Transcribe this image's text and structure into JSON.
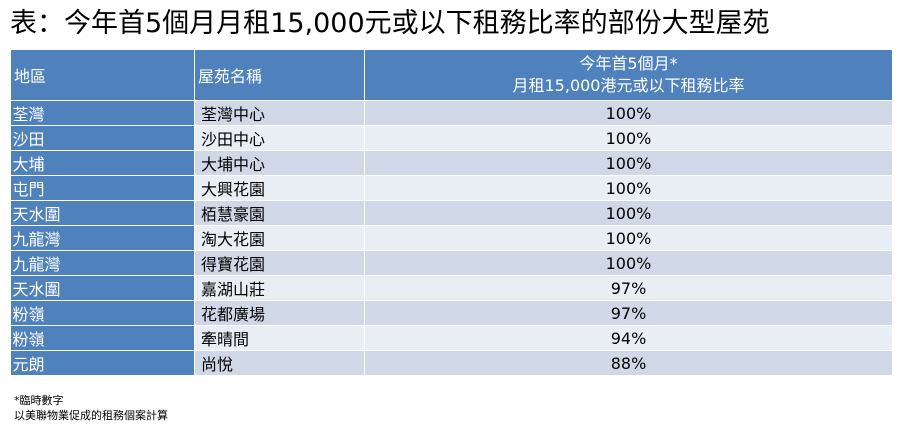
{
  "title": "表：今年首5個月月租15,000元或以下租務比率的部份大型屋苑",
  "colors": {
    "header_bg": "#4f81bd",
    "row_odd": "#d0d8e8",
    "row_even": "#e9edf4",
    "header_text": "#ffffff"
  },
  "table": {
    "headers": {
      "region": "地區",
      "estate": "屋苑名稱",
      "ratio_line1": "今年首5個月*",
      "ratio_line2": "月租15,000港元或以下租務比率"
    },
    "rows": [
      {
        "region": "荃灣",
        "estate": "荃灣中心",
        "ratio": "100%"
      },
      {
        "region": "沙田",
        "estate": "沙田中心",
        "ratio": "100%"
      },
      {
        "region": "大埔",
        "estate": "大埔中心",
        "ratio": "100%"
      },
      {
        "region": "屯門",
        "estate": "大興花園",
        "ratio": "100%"
      },
      {
        "region": "天水圍",
        "estate": "栢慧豪園",
        "ratio": "100%"
      },
      {
        "region": "九龍灣",
        "estate": "淘大花園",
        "ratio": "100%"
      },
      {
        "region": "九龍灣",
        "estate": "得寶花園",
        "ratio": "100%"
      },
      {
        "region": "天水圍",
        "estate": "嘉湖山莊",
        "ratio": "97%"
      },
      {
        "region": "粉嶺",
        "estate": "花都廣場",
        "ratio": "97%"
      },
      {
        "region": "粉嶺",
        "estate": "牽晴間",
        "ratio": "94%"
      },
      {
        "region": "元朗",
        "estate": "尚悅",
        "ratio": "88%"
      }
    ]
  },
  "notes": {
    "line1": "*臨時數字",
    "line2": "以美聯物業促成的租務個案計算"
  }
}
